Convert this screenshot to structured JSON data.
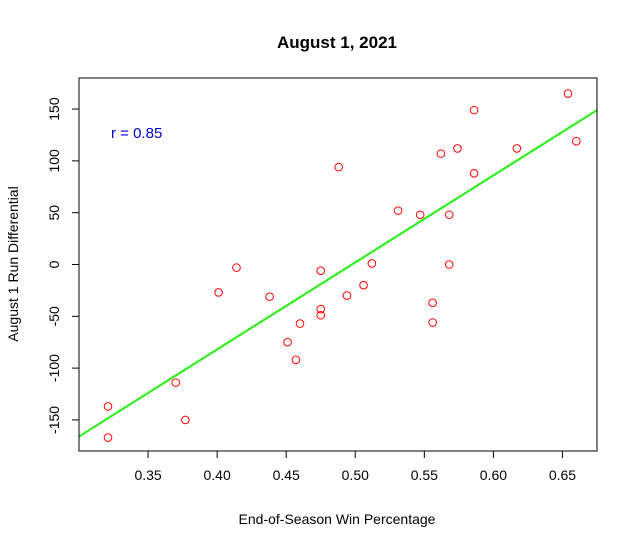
{
  "chart_data": {
    "type": "scatter",
    "title": "August 1, 2021",
    "xlabel": "End-of-Season Win Percentage",
    "ylabel": "August 1 Run Differential",
    "xlim": [
      0.3,
      0.675
    ],
    "ylim": [
      -180,
      180
    ],
    "xticks": [
      "0.35",
      "0.40",
      "0.45",
      "0.50",
      "0.55",
      "0.60",
      "0.65"
    ],
    "yticks": [
      "-150",
      "-100",
      "-50",
      "0",
      "50",
      "100",
      "150"
    ],
    "grid": false,
    "point_color": "#ff0000",
    "line_color": "#33ee22",
    "annotation": {
      "text": "r = 0.85",
      "color": "#0000cc"
    },
    "regression_line": {
      "x": [
        0.3,
        0.675
      ],
      "y": [
        -166,
        149
      ]
    },
    "points": [
      {
        "x": 0.321,
        "y": -137
      },
      {
        "x": 0.321,
        "y": -167
      },
      {
        "x": 0.37,
        "y": -114
      },
      {
        "x": 0.377,
        "y": -150
      },
      {
        "x": 0.401,
        "y": -27
      },
      {
        "x": 0.414,
        "y": -3
      },
      {
        "x": 0.438,
        "y": -31
      },
      {
        "x": 0.451,
        "y": -75
      },
      {
        "x": 0.457,
        "y": -92
      },
      {
        "x": 0.46,
        "y": -57
      },
      {
        "x": 0.475,
        "y": -6
      },
      {
        "x": 0.475,
        "y": -43
      },
      {
        "x": 0.475,
        "y": -49
      },
      {
        "x": 0.488,
        "y": 94
      },
      {
        "x": 0.494,
        "y": -30
      },
      {
        "x": 0.506,
        "y": -20
      },
      {
        "x": 0.512,
        "y": 1
      },
      {
        "x": 0.531,
        "y": 52
      },
      {
        "x": 0.547,
        "y": 48
      },
      {
        "x": 0.556,
        "y": -37
      },
      {
        "x": 0.556,
        "y": -56
      },
      {
        "x": 0.562,
        "y": 107
      },
      {
        "x": 0.568,
        "y": 48
      },
      {
        "x": 0.568,
        "y": 0
      },
      {
        "x": 0.574,
        "y": 112
      },
      {
        "x": 0.586,
        "y": 149
      },
      {
        "x": 0.586,
        "y": 88
      },
      {
        "x": 0.617,
        "y": 112
      },
      {
        "x": 0.654,
        "y": 165
      },
      {
        "x": 0.66,
        "y": 119
      }
    ]
  }
}
